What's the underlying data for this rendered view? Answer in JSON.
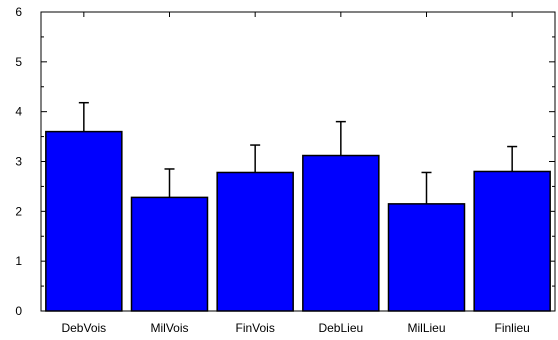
{
  "chart_data": {
    "type": "bar",
    "categories": [
      "DebVois",
      "MilVois",
      "FinVois",
      "DebLieu",
      "MilLieu",
      "Finlieu"
    ],
    "values": [
      3.6,
      2.28,
      2.78,
      3.12,
      2.15,
      2.8
    ],
    "error_upper": [
      4.18,
      2.85,
      3.33,
      3.8,
      2.78,
      3.3
    ],
    "title": "",
    "xlabel": "",
    "ylabel": "",
    "ylim": [
      0,
      6
    ],
    "yticks": [
      0,
      1,
      2,
      3,
      4,
      5,
      6
    ],
    "grid": false,
    "legend": "none",
    "colors": {
      "bar": "#0000ff",
      "outline": "#000000"
    }
  }
}
